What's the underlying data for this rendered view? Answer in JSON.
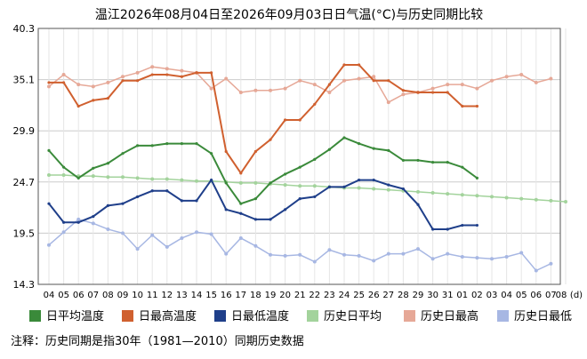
{
  "title": "温江2026年08月04日至2026年09月03日日气温(°C)与历史同期比较",
  "note": "注释：历史同期是指30年（1981—2010）同期历史数据",
  "colors": {
    "avg": "#3a8a3a",
    "max": "#d0602f",
    "min": "#1f3f8a",
    "hist_avg": "#a3d39c",
    "hist_max": "#e6a897",
    "hist_min": "#a7b7e3",
    "grid": "#cccccc",
    "axis": "#555555"
  },
  "chart_data": {
    "type": "line",
    "x": [
      "04",
      "05",
      "06",
      "07",
      "08",
      "09",
      "10",
      "11",
      "12",
      "13",
      "14",
      "15",
      "16",
      "17",
      "18",
      "19",
      "20",
      "21",
      "22",
      "23",
      "24",
      "25",
      "26",
      "27",
      "28",
      "29",
      "30",
      "31",
      "01",
      "02",
      "03",
      "04",
      "05",
      "06",
      "07",
      "08"
    ],
    "x_unit": "(d)",
    "yticks": [
      "14.3",
      "19.5",
      "24.7",
      "29.9",
      "35.1",
      "40.3"
    ],
    "ylim": [
      14.3,
      40.3
    ],
    "grid": true,
    "legend_position": "bottom",
    "series": [
      {
        "name": "日平均温度",
        "key": "avg",
        "values": [
          27.9,
          26.2,
          25.1,
          26.1,
          26.6,
          27.6,
          28.4,
          28.4,
          28.6,
          28.6,
          28.6,
          27.6,
          24.6,
          22.5,
          23.0,
          24.6,
          25.5,
          26.2,
          27.0,
          28.0,
          29.2,
          28.6,
          28.1,
          27.9,
          26.9,
          26.9,
          26.7,
          26.7,
          26.2,
          25.1,
          null,
          null,
          null,
          null,
          null,
          null
        ]
      },
      {
        "name": "日最高温度",
        "key": "max",
        "values": [
          34.8,
          34.8,
          32.4,
          33.0,
          33.2,
          35.0,
          35.0,
          35.6,
          35.6,
          35.4,
          35.8,
          35.8,
          27.8,
          25.6,
          27.8,
          29.0,
          31.0,
          31.0,
          32.6,
          34.6,
          36.6,
          36.6,
          35.0,
          35.0,
          34.0,
          33.8,
          33.8,
          33.8,
          32.4,
          32.4,
          null,
          null,
          null,
          null,
          null,
          null
        ]
      },
      {
        "name": "日最低温度",
        "key": "min",
        "values": [
          22.5,
          20.6,
          20.6,
          21.2,
          22.3,
          22.5,
          23.2,
          23.8,
          23.8,
          22.8,
          22.8,
          24.9,
          21.9,
          21.5,
          20.9,
          20.9,
          21.9,
          23.0,
          23.2,
          24.2,
          24.2,
          24.9,
          24.9,
          24.4,
          24.0,
          22.4,
          19.9,
          19.9,
          20.3,
          20.3,
          null,
          null,
          null,
          null,
          null,
          null
        ]
      },
      {
        "name": "历史日平均",
        "key": "hist_avg",
        "values": [
          25.4,
          25.4,
          25.3,
          25.3,
          25.2,
          25.2,
          25.1,
          25.0,
          25.0,
          24.9,
          24.8,
          24.8,
          24.7,
          24.6,
          24.6,
          24.5,
          24.4,
          24.3,
          24.3,
          24.2,
          24.1,
          24.1,
          24.0,
          23.9,
          23.8,
          23.7,
          23.6,
          23.5,
          23.4,
          23.3,
          23.2,
          23.1,
          23.0,
          22.9,
          22.8,
          22.7
        ]
      },
      {
        "name": "历史日最高",
        "key": "hist_max",
        "values": [
          34.4,
          35.6,
          34.6,
          34.4,
          34.8,
          35.4,
          35.8,
          36.4,
          36.2,
          36.0,
          35.8,
          34.2,
          35.2,
          33.8,
          34.0,
          34.0,
          34.2,
          35.0,
          34.6,
          33.8,
          35.0,
          35.2,
          35.4,
          32.8,
          33.6,
          33.8,
          34.2,
          34.6,
          34.6,
          34.2,
          35.0,
          35.4,
          35.6,
          34.8,
          35.2,
          null
        ]
      },
      {
        "name": "历史日最低",
        "key": "hist_min",
        "values": [
          18.3,
          19.6,
          20.9,
          20.5,
          19.9,
          19.5,
          17.9,
          19.3,
          18.1,
          19.0,
          19.6,
          19.4,
          17.4,
          19.0,
          18.2,
          17.3,
          17.2,
          17.3,
          16.6,
          17.8,
          17.3,
          17.2,
          16.7,
          17.4,
          17.4,
          17.9,
          16.9,
          17.4,
          17.1,
          17.0,
          16.9,
          17.1,
          17.5,
          15.7,
          16.4,
          null
        ]
      }
    ]
  }
}
